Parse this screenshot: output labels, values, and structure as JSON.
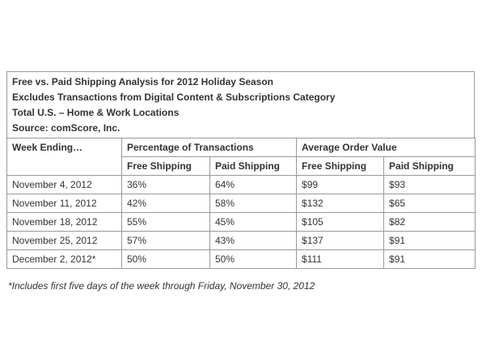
{
  "header": {
    "lines": [
      "Free vs. Paid Shipping Analysis for 2012 Holiday Season",
      "Excludes Transactions from Digital Content & Subscriptions Category",
      "Total U.S. – Home & Work Locations",
      "Source: comScore, Inc."
    ]
  },
  "table": {
    "week_header": "Week Ending…",
    "groups": [
      "Percentage of Transactions",
      "Average Order Value"
    ],
    "subheaders": [
      "Free Shipping",
      "Paid Shipping",
      "Free Shipping",
      "Paid Shipping"
    ],
    "rows": [
      [
        "November 4, 2012",
        "36%",
        "64%",
        "$99",
        "$93"
      ],
      [
        "November 11, 2012",
        "42%",
        "58%",
        "$132",
        "$65"
      ],
      [
        "November 18, 2012",
        "55%",
        "45%",
        "$105",
        "$82"
      ],
      [
        "November 25, 2012",
        "57%",
        "43%",
        "$137",
        "$91"
      ],
      [
        "December 2, 2012*",
        "50%",
        "50%",
        "$111",
        "$91"
      ]
    ]
  },
  "footnote": "*Includes first five days of the week through Friday, November 30, 2012"
}
